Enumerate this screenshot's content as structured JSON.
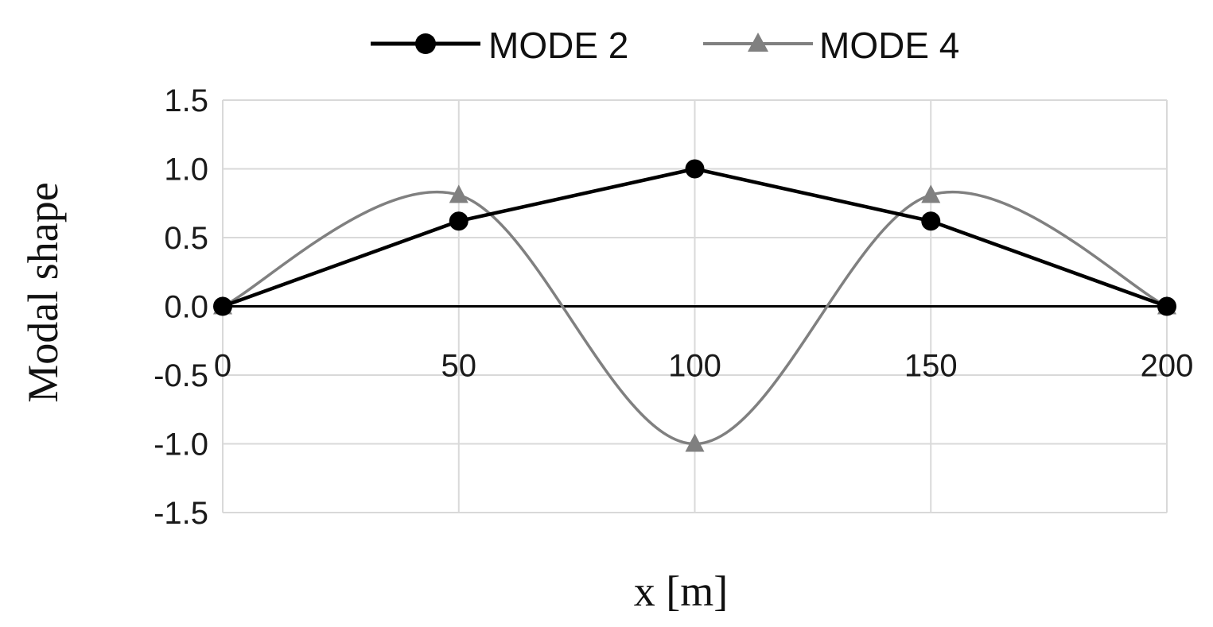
{
  "chart_data": {
    "type": "line",
    "xlabel": "x [m]",
    "ylabel": "Modal shape",
    "xlim": [
      0,
      200
    ],
    "ylim": [
      -1.5,
      1.5
    ],
    "x_ticks": [
      "0",
      "50",
      "100",
      "150",
      "200"
    ],
    "y_ticks": [
      "1.5",
      "1.0",
      "0.5",
      "0.0",
      "-0.5",
      "-1.0",
      "-1.5"
    ],
    "grid": true,
    "legend_position": "top-center",
    "series": [
      {
        "name": "MODE 2",
        "color": "#000000",
        "marker": "circle",
        "smooth": false,
        "x": [
          0,
          50,
          100,
          150,
          200
        ],
        "y": [
          0.0,
          0.62,
          1.0,
          0.62,
          0.0
        ]
      },
      {
        "name": "MODE 4",
        "color": "#808080",
        "marker": "triangle",
        "smooth": true,
        "x": [
          0,
          50,
          100,
          150,
          200
        ],
        "y": [
          0.0,
          0.81,
          -1.0,
          0.81,
          0.0
        ]
      }
    ]
  }
}
